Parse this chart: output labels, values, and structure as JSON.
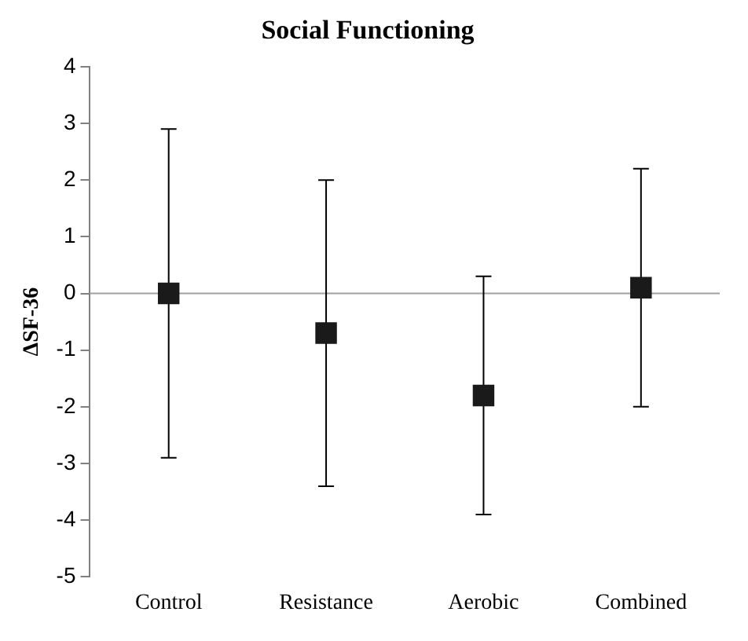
{
  "chart_data": {
    "type": "scatter",
    "title": "Social Functioning",
    "ylabel": "ΔSF-36",
    "categories": [
      "Control",
      "Resistance",
      "Aerobic",
      "Combined"
    ],
    "series": [
      {
        "color": "#1a1a1a",
        "values": [
          0,
          -0.7,
          -1.8,
          0.1
        ],
        "errors": [
          [
            -2.9,
            2.9
          ],
          [
            -3.4,
            2.0
          ],
          [
            -3.9,
            0.3
          ],
          [
            -2.0,
            2.2
          ]
        ]
      }
    ],
    "ylim": [
      -5,
      4
    ],
    "yticks": [
      -5,
      -4,
      -3,
      -2,
      -1,
      0,
      1,
      2,
      3,
      4
    ],
    "ref_lines": [
      {
        "axis": "y",
        "value": 0,
        "color": "#a0a0a0"
      }
    ],
    "marker": "square",
    "grid": false,
    "legend": false
  }
}
